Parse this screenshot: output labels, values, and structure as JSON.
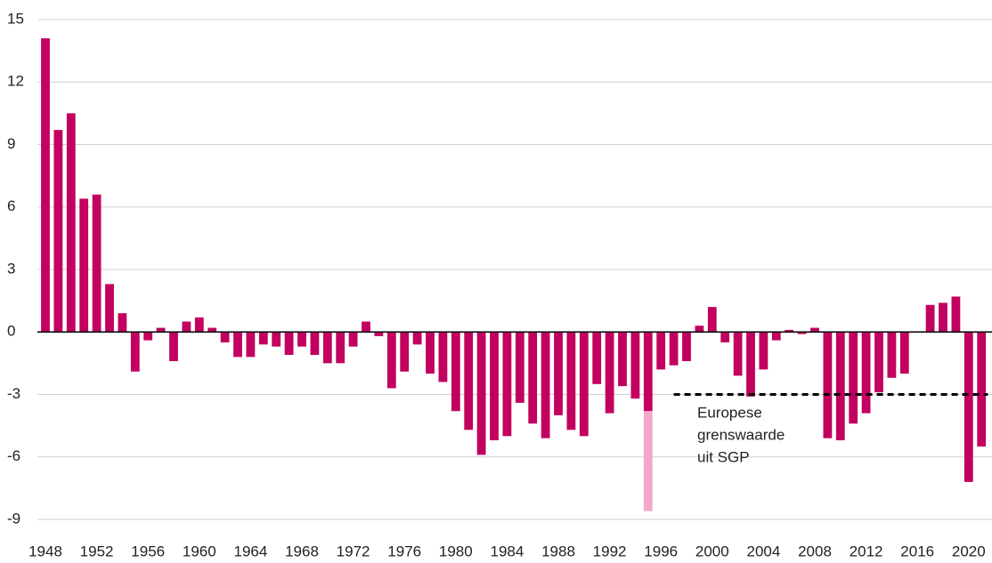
{
  "chart_data": {
    "type": "bar",
    "x": [
      1948,
      1949,
      1950,
      1951,
      1952,
      1953,
      1954,
      1955,
      1956,
      1957,
      1958,
      1959,
      1960,
      1961,
      1962,
      1963,
      1964,
      1965,
      1966,
      1967,
      1968,
      1969,
      1970,
      1971,
      1972,
      1973,
      1974,
      1975,
      1976,
      1977,
      1978,
      1979,
      1980,
      1981,
      1982,
      1983,
      1984,
      1985,
      1986,
      1987,
      1988,
      1989,
      1990,
      1991,
      1992,
      1993,
      1994,
      1995,
      1996,
      1997,
      1998,
      1999,
      2000,
      2001,
      2002,
      2003,
      2004,
      2005,
      2006,
      2007,
      2008,
      2009,
      2010,
      2011,
      2012,
      2013,
      2014,
      2015,
      2016,
      2017,
      2018,
      2019,
      2020,
      2021
    ],
    "values": [
      14.1,
      9.7,
      10.5,
      6.4,
      6.6,
      2.3,
      0.9,
      -1.9,
      -0.4,
      0.2,
      -1.4,
      0.5,
      0.7,
      0.2,
      -0.5,
      -1.2,
      -1.2,
      -0.6,
      -0.7,
      -1.1,
      -0.7,
      -1.1,
      -1.5,
      -1.5,
      -0.7,
      0.5,
      -0.2,
      -2.7,
      -1.9,
      -0.6,
      -2.0,
      -2.4,
      -3.8,
      -4.7,
      -5.9,
      -5.2,
      -5.0,
      -3.4,
      -4.4,
      -5.1,
      -4.0,
      -4.7,
      -5.0,
      -2.5,
      -3.9,
      -2.6,
      -3.2,
      -3.8,
      -1.8,
      -1.6,
      -1.4,
      0.3,
      1.2,
      -0.5,
      -2.1,
      -3.1,
      -1.8,
      -0.4,
      0.1,
      -0.1,
      0.2,
      -5.1,
      -5.2,
      -4.4,
      -3.9,
      -2.9,
      -2.2,
      -2.0,
      0.0,
      1.3,
      1.4,
      1.7,
      -7.2,
      -5.5
    ],
    "color": "#c2005f",
    "extra_values": [
      null,
      null,
      null,
      null,
      null,
      null,
      null,
      null,
      null,
      null,
      null,
      null,
      null,
      null,
      null,
      null,
      null,
      null,
      null,
      null,
      null,
      null,
      null,
      null,
      null,
      null,
      null,
      null,
      null,
      null,
      null,
      null,
      null,
      null,
      null,
      null,
      null,
      null,
      null,
      null,
      null,
      null,
      null,
      null,
      null,
      null,
      null,
      -4.8,
      null,
      null,
      null,
      null,
      null,
      null,
      null,
      null,
      null,
      null,
      null,
      null,
      null,
      null,
      null,
      null,
      null,
      null,
      null,
      null,
      null,
      null,
      null,
      null,
      null,
      null
    ],
    "extra_color": "#f4a7c8",
    "xlim": [
      1947.5,
      2021.5
    ],
    "xticks": [
      1948,
      1952,
      1956,
      1960,
      1964,
      1968,
      1972,
      1976,
      1980,
      1984,
      1988,
      1992,
      1996,
      2000,
      2004,
      2008,
      2012,
      2016,
      2020
    ],
    "ylim": [
      -9.5,
      15.5
    ],
    "yticks": [
      -9,
      -6,
      -3,
      0,
      3,
      6,
      9,
      12,
      15
    ],
    "grid": true,
    "reference": {
      "value": -3,
      "from": 1997,
      "label": [
        "Europese",
        "grenswaarde",
        "uit SGP"
      ]
    }
  }
}
